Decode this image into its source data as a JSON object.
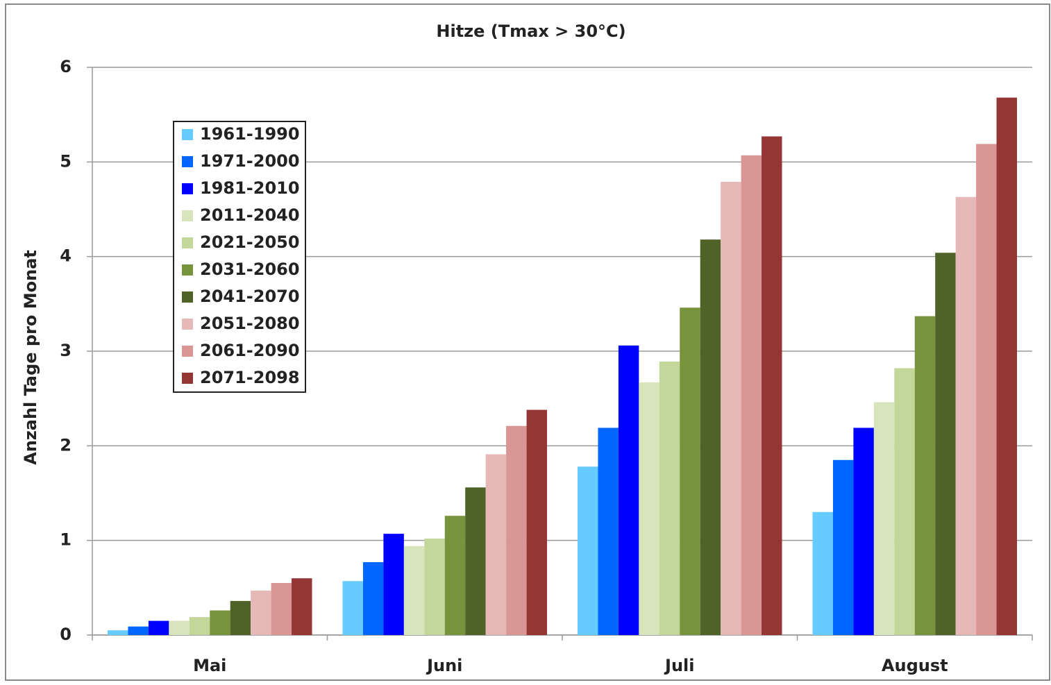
{
  "chart_data": {
    "type": "bar",
    "title": "Hitze (Tmax > 30°C)",
    "y_label": "Anzahl Tage pro Monat",
    "categories": [
      "Mai",
      "Juni",
      "Juli",
      "August"
    ],
    "series": [
      {
        "name": "1961-1990",
        "color": "#66ccff",
        "values": [
          0.05,
          0.57,
          1.78,
          1.3
        ]
      },
      {
        "name": "1971-2000",
        "color": "#0066ff",
        "values": [
          0.09,
          0.77,
          2.19,
          1.85
        ]
      },
      {
        "name": "1981-2010",
        "color": "#0000ff",
        "values": [
          0.15,
          1.07,
          3.06,
          2.19
        ]
      },
      {
        "name": "2011-2040",
        "color": "#d8e4bc",
        "values": [
          0.15,
          0.94,
          2.67,
          2.46
        ]
      },
      {
        "name": "2021-2050",
        "color": "#c4d79b",
        "values": [
          0.19,
          1.02,
          2.89,
          2.82
        ]
      },
      {
        "name": "2031-2060",
        "color": "#77933c",
        "values": [
          0.26,
          1.26,
          3.46,
          3.37
        ]
      },
      {
        "name": "2041-2070",
        "color": "#4f6228",
        "values": [
          0.36,
          1.56,
          4.18,
          4.04
        ]
      },
      {
        "name": "2051-2080",
        "color": "#e6b9b8",
        "values": [
          0.47,
          1.91,
          4.79,
          4.63
        ]
      },
      {
        "name": "2061-2090",
        "color": "#da9694",
        "values": [
          0.55,
          2.21,
          5.07,
          5.19
        ]
      },
      {
        "name": "2071-2098",
        "color": "#963634",
        "values": [
          0.6,
          2.38,
          5.27,
          5.68
        ]
      }
    ],
    "ylim": [
      0,
      6
    ],
    "yticks": [
      0,
      1,
      2,
      3,
      4,
      5,
      6
    ],
    "grid": true,
    "legend": "upper left"
  }
}
